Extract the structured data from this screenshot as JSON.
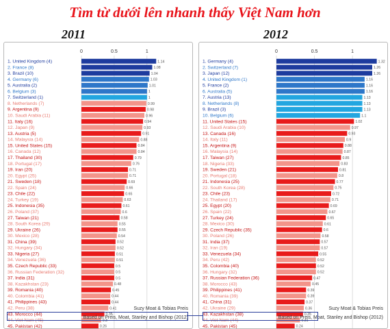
{
  "headline": "Tìm từ dưới lên nhanh thấy Việt Nam hơn",
  "colors": {
    "blue_dark": "#1d3b9e",
    "blue_mid": "#2e77c9",
    "blue_light": "#22a6e0",
    "red": "#e81b1b",
    "red_light": "#f3948a"
  },
  "chart_data": [
    {
      "type": "bar",
      "year_label": "2011",
      "xlim": [
        0,
        1.2
      ],
      "xticks": [
        "0",
        "0.5",
        "1"
      ],
      "credit": [
        "Suzy Moat & Tobias Preis",
        "Based on Preis, Moat, Stanley and Bishop (2012)"
      ],
      "categories": [
        "1. United Kingdom (4)",
        "2. France (8)",
        "3. Brazil (10)",
        "4. Germany (6)",
        "5. Australia (2)",
        "6. Belgium (3)",
        "7. Switzerland (1)",
        "8. Netherlands (7)",
        "9. Argentina (9)",
        "10. Saudi Arabia (11)",
        "11. Italy (16)",
        "12. Japan (9)",
        "13. Austria (5)",
        "14. Malaysia (14)",
        "15. United States (15)",
        "16. Canada (12)",
        "17. Thailand (30)",
        "18. Portugal (17)",
        "19. Iran (20)",
        "20. Egypt (25)",
        "21. Sweden (18)",
        "22. Spain (24)",
        "23. Chile (22)",
        "24. Turkey (19)",
        "25. Indonesia (35)",
        "26. Poland (37)",
        "27. Taiwan (21)",
        "28. South Korea (29)",
        "29. Ukraine (26)",
        "30. Mexico (28)",
        "31. China (39)",
        "32. Hungary (34)",
        "33. Nigeria (27)",
        "34. Venezuela (36)",
        "35. Czech Republic (33)",
        "36. Russian Federation (32)",
        "37. India (31)",
        "38. Kazakhstan (23)",
        "39. Romania (40)",
        "40. Colombia (41)",
        "41. Philippines (43)",
        "42. Peru (38)",
        "43. Morocco (44)",
        "44. Viet Nam (45)",
        "45. Pakistan (42)"
      ],
      "values": [
        1.14,
        1.08,
        1.04,
        1.03,
        1.01,
        1,
        1,
        0.99,
        0.98,
        0.96,
        0.94,
        0.93,
        0.91,
        0.88,
        0.84,
        0.84,
        0.79,
        0.76,
        0.71,
        0.71,
        0.69,
        0.66,
        0.65,
        0.63,
        0.61,
        0.6,
        0.58,
        0.55,
        0.55,
        0.54,
        0.52,
        0.52,
        0.51,
        0.51,
        0.5,
        0.5,
        0.5,
        0.48,
        0.45,
        0.44,
        0.44,
        0.41,
        0.35,
        0.3,
        0.26
      ]
    },
    {
      "type": "bar",
      "year_label": "2012",
      "xlim": [
        0,
        1.35
      ],
      "xticks": [
        "0",
        "0.5",
        "1"
      ],
      "credit": [
        "Suzy Moat & Tobias Preis",
        "Based on Preis, Moat, Stanley and Bishop (2012)"
      ],
      "categories": [
        "1. Germany (4)",
        "2. Switzerland (7)",
        "3. Japan (12)",
        "4. United Kingdom (1)",
        "5. France (2)",
        "6. Australia (5)",
        "7. Austria (13)",
        "8. Netherlands (8)",
        "9. Brazil (3)",
        "10. Belgium (6)",
        "11. United States (15)",
        "12. Saudi Arabia (10)",
        "13. Canada (16)",
        "14. Italy (11)",
        "15. Argentina (9)",
        "16. Malaysia (14)",
        "17. Taiwan (27)",
        "18. Nigeria (33)",
        "19. Sweden (21)",
        "20. Portugal (18)",
        "21. Indonesia (25)",
        "22. South Korea (28)",
        "23. Chile (23)",
        "24. Thailand (17)",
        "25. Egypt (20)",
        "26. Spain (22)",
        "27. Turkey (24)",
        "28. Mexico (30)",
        "29. Czech Republic (35)",
        "30. Poland (26)",
        "31. India (37)",
        "32. Iran (19)",
        "33. Venezuela (34)",
        "34. Peru (42)",
        "35. Colombia (40)",
        "36. Hungary (32)",
        "37. Russian Federation (36)",
        "38. Morocco (43)",
        "39. Philippines (41)",
        "40. Romania (39)",
        "41. China (31)",
        "42. Ukraine (29)",
        "43. Kazakhstan (38)",
        "44. Viet Nam (44)",
        "45. Pakistan (45)"
      ],
      "values": [
        1.32,
        1.26,
        1.26,
        1.16,
        1.16,
        1.16,
        1.13,
        1.13,
        1.13,
        1.1,
        1.02,
        0.97,
        0.93,
        0.9,
        0.88,
        0.87,
        0.85,
        0.83,
        0.81,
        0.8,
        0.77,
        0.75,
        0.72,
        0.71,
        0.69,
        0.67,
        0.65,
        0.61,
        0.6,
        0.58,
        0.57,
        0.57,
        0.55,
        0.52,
        0.52,
        0.52,
        0.47,
        0.45,
        0.39,
        0.39,
        0.37,
        0.36,
        0.35,
        0.31,
        0.24
      ]
    }
  ]
}
